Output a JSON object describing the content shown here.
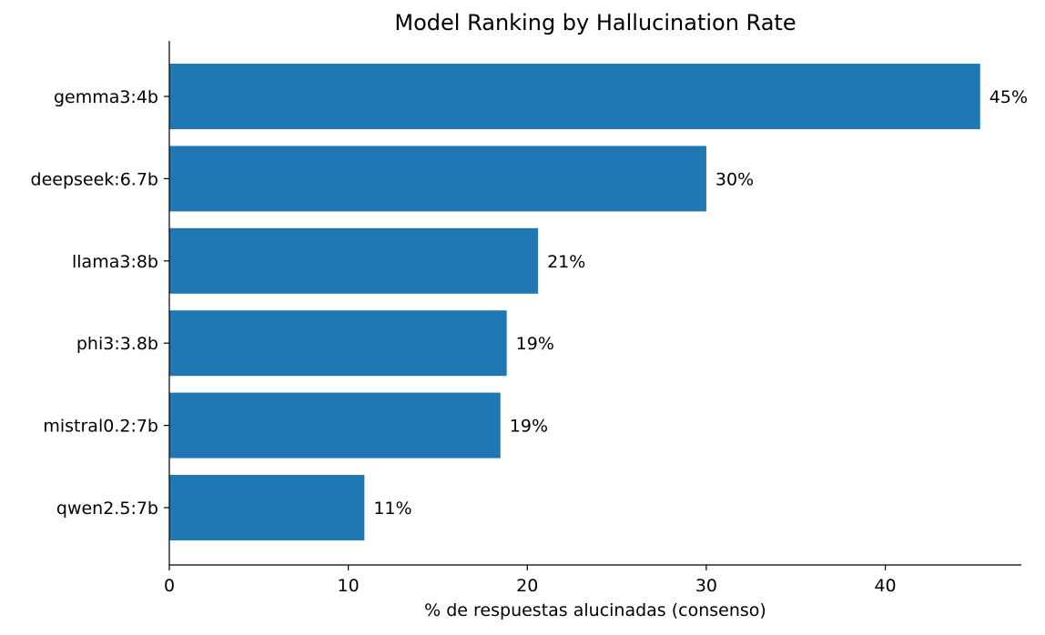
{
  "chart_data": {
    "type": "bar",
    "orientation": "horizontal",
    "title": "Model Ranking by Hallucination Rate",
    "xlabel": "% de respuestas alucinadas (consenso)",
    "ylabel": "",
    "categories": [
      "gemma3:4b",
      "deepseek:6.7b",
      "llama3:8b",
      "phi3:3.8b",
      "mistral0.2:7b",
      "qwen2.5:7b"
    ],
    "values": [
      45.3,
      30.0,
      20.6,
      18.85,
      18.5,
      10.9
    ],
    "data_labels": [
      "45%",
      "30%",
      "21%",
      "19%",
      "19%",
      "11%"
    ],
    "xlim": [
      0,
      47.6
    ],
    "xticks": [
      0,
      10,
      20,
      30,
      40
    ],
    "xtick_labels": [
      "0",
      "10",
      "20",
      "30",
      "40"
    ],
    "bar_color": "#1f77b4",
    "grid": false,
    "legend": "none"
  }
}
